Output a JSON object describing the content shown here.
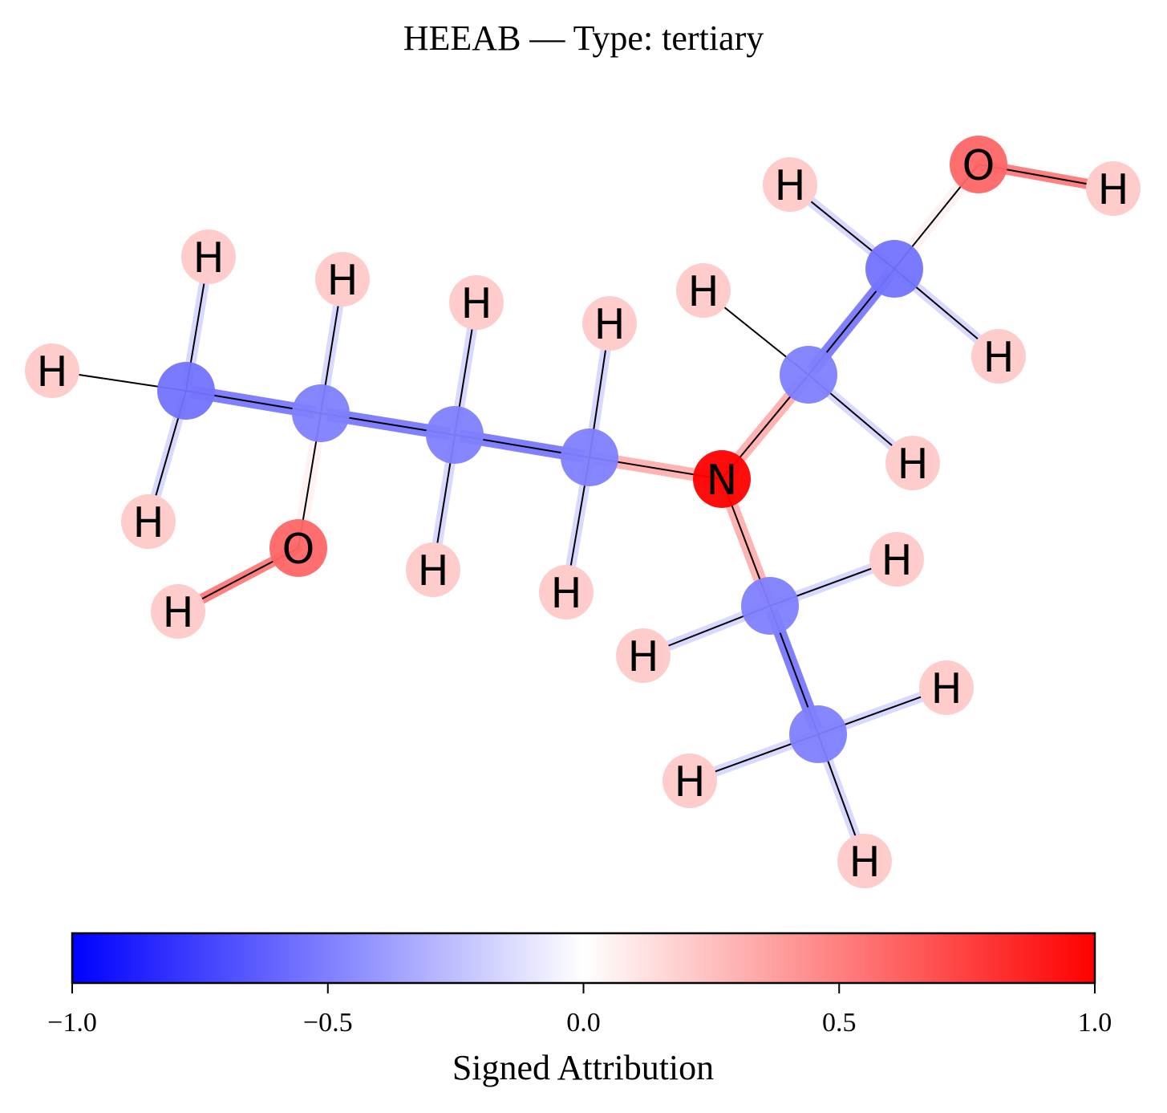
{
  "title": "HEEAB — Type: tertiary",
  "colorbar": {
    "label": "Signed Attribution",
    "ticks": [
      "−1.0",
      "−0.5",
      "0.0",
      "0.5",
      "1.0"
    ],
    "tick_values": [
      -1.0,
      -0.5,
      0.0,
      0.5,
      1.0
    ],
    "range": [
      -1.0,
      1.0
    ],
    "colormap": [
      "#0000ff",
      "#ffffff",
      "#ff0000"
    ]
  },
  "atoms": [
    {
      "id": "C1",
      "element": "",
      "attribution": -0.55
    },
    {
      "id": "C2",
      "element": "",
      "attribution": -0.5
    },
    {
      "id": "C3",
      "element": "",
      "attribution": -0.5
    },
    {
      "id": "C4",
      "element": "",
      "attribution": -0.5
    },
    {
      "id": "N1",
      "element": "N",
      "attribution": 1.0
    },
    {
      "id": "C5",
      "element": "",
      "attribution": -0.5
    },
    {
      "id": "C6",
      "element": "",
      "attribution": -0.55
    },
    {
      "id": "O1",
      "element": "O",
      "attribution": 0.6
    },
    {
      "id": "C7",
      "element": "",
      "attribution": -0.5
    },
    {
      "id": "C8",
      "element": "",
      "attribution": -0.5
    },
    {
      "id": "O2",
      "element": "O",
      "attribution": 0.6
    },
    {
      "id": "H1",
      "element": "H",
      "attribution": 0.2
    },
    {
      "id": "H2",
      "element": "H",
      "attribution": 0.2
    },
    {
      "id": "H3",
      "element": "H",
      "attribution": 0.2
    },
    {
      "id": "H4",
      "element": "H",
      "attribution": 0.2
    },
    {
      "id": "H5",
      "element": "H",
      "attribution": 0.2
    },
    {
      "id": "H6",
      "element": "H",
      "attribution": 0.2
    },
    {
      "id": "H7",
      "element": "H",
      "attribution": 0.2
    },
    {
      "id": "H8",
      "element": "H",
      "attribution": 0.2
    },
    {
      "id": "H9",
      "element": "H",
      "attribution": 0.2
    },
    {
      "id": "H10",
      "element": "H",
      "attribution": 0.2
    },
    {
      "id": "H11",
      "element": "H",
      "attribution": 0.2
    },
    {
      "id": "H12",
      "element": "H",
      "attribution": 0.2
    },
    {
      "id": "H13",
      "element": "H",
      "attribution": 0.2
    },
    {
      "id": "H14",
      "element": "H",
      "attribution": 0.2
    },
    {
      "id": "H15",
      "element": "H",
      "attribution": 0.2
    },
    {
      "id": "H16",
      "element": "H",
      "attribution": 0.2
    },
    {
      "id": "H17",
      "element": "H",
      "attribution": 0.2
    },
    {
      "id": "H18",
      "element": "H",
      "attribution": 0.2
    },
    {
      "id": "H19",
      "element": "H",
      "attribution": 0.2
    }
  ],
  "bonds": [
    {
      "a": "C1",
      "b": "C2",
      "attribution": -0.5
    },
    {
      "a": "C2",
      "b": "C3",
      "attribution": -0.5
    },
    {
      "a": "C3",
      "b": "C4",
      "attribution": -0.5
    },
    {
      "a": "C4",
      "b": "N1",
      "attribution": 0.3
    },
    {
      "a": "N1",
      "b": "C5",
      "attribution": 0.3
    },
    {
      "a": "C5",
      "b": "C6",
      "attribution": -0.5
    },
    {
      "a": "C6",
      "b": "O1",
      "attribution": 0.05
    },
    {
      "a": "O1",
      "b": "H1",
      "attribution": 0.5
    },
    {
      "a": "N1",
      "b": "C7",
      "attribution": 0.3
    },
    {
      "a": "C7",
      "b": "C8",
      "attribution": -0.5
    },
    {
      "a": "C2",
      "b": "O2",
      "attribution": 0.05
    },
    {
      "a": "O2",
      "b": "H2",
      "attribution": 0.5
    },
    {
      "a": "C1",
      "b": "H3",
      "attribution": -0.15
    },
    {
      "a": "C1",
      "b": "H4",
      "attribution": -0.15
    },
    {
      "a": "C1",
      "b": "H5",
      "attribution": 0.0
    },
    {
      "a": "C2",
      "b": "H6",
      "attribution": -0.15
    },
    {
      "a": "C3",
      "b": "H7",
      "attribution": -0.15
    },
    {
      "a": "C3",
      "b": "H8",
      "attribution": -0.15
    },
    {
      "a": "C4",
      "b": "H9",
      "attribution": -0.15
    },
    {
      "a": "C4",
      "b": "H10",
      "attribution": -0.15
    },
    {
      "a": "C5",
      "b": "H11",
      "attribution": 0.0
    },
    {
      "a": "C5",
      "b": "H12",
      "attribution": -0.15
    },
    {
      "a": "C6",
      "b": "H13",
      "attribution": -0.15
    },
    {
      "a": "C6",
      "b": "H14",
      "attribution": -0.15
    },
    {
      "a": "C7",
      "b": "H15",
      "attribution": -0.15
    },
    {
      "a": "C7",
      "b": "H16",
      "attribution": -0.15
    },
    {
      "a": "C8",
      "b": "H17",
      "attribution": -0.15
    },
    {
      "a": "C8",
      "b": "H18",
      "attribution": -0.15
    },
    {
      "a": "C8",
      "b": "H19",
      "attribution": -0.15
    }
  ]
}
